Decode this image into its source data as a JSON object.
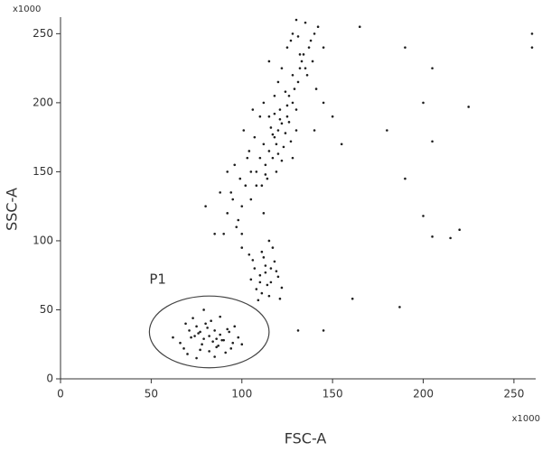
{
  "chart_data": {
    "type": "scatter",
    "x_label": "FSC-A",
    "y_label": "SSC-A",
    "x_unit_label": "x1000",
    "y_unit_label": "x1000",
    "xlim": [
      0,
      262
    ],
    "ylim": [
      0,
      262
    ],
    "xticks": [
      0,
      50,
      100,
      150,
      200,
      250
    ],
    "yticks": [
      0,
      50,
      100,
      150,
      200,
      250
    ],
    "color": "#1e1e1e",
    "gate": {
      "label": "P1",
      "center": [
        82,
        34
      ],
      "radius": [
        33,
        26
      ]
    },
    "x": [
      72,
      78,
      85,
      90,
      68,
      75,
      82,
      88,
      95,
      80,
      70,
      76,
      84,
      92,
      98,
      73,
      79,
      86,
      91,
      66,
      74,
      81,
      87,
      93,
      77,
      83,
      89,
      71,
      96,
      85,
      62,
      100,
      79,
      88,
      75,
      69,
      94,
      82,
      86,
      77,
      110,
      113,
      116,
      108,
      119,
      112,
      105,
      115,
      118,
      111,
      114,
      107,
      120,
      109,
      117,
      122,
      113,
      106,
      111,
      116,
      104,
      121,
      110,
      115,
      100,
      120,
      118,
      125,
      115,
      122,
      128,
      112,
      130,
      117,
      124,
      119,
      126,
      113,
      121,
      127,
      116,
      123,
      110,
      131,
      118,
      125,
      114,
      129,
      120,
      108,
      135,
      122,
      117,
      126,
      111,
      133,
      119,
      105,
      128,
      124,
      115,
      137,
      121,
      113,
      130,
      100,
      95,
      102,
      98,
      92,
      105,
      88,
      97,
      103,
      90,
      140,
      138,
      142,
      134,
      136,
      132,
      145,
      139,
      131,
      141,
      107,
      110,
      104,
      112,
      99,
      96,
      108,
      101,
      94,
      106,
      125,
      130,
      120,
      128,
      135,
      115,
      122,
      118,
      127,
      132,
      85,
      145,
      150,
      112,
      140,
      80,
      155,
      100,
      92,
      128,
      190,
      205,
      200,
      225,
      180,
      205,
      190,
      200,
      205,
      215,
      220,
      187,
      161,
      260,
      260,
      165,
      145,
      131
    ],
    "y": [
      30,
      25,
      35,
      28,
      22,
      38,
      20,
      32,
      26,
      40,
      18,
      33,
      27,
      36,
      30,
      44,
      29,
      23,
      19,
      26,
      31,
      37,
      24,
      34,
      21,
      42,
      28,
      35,
      38,
      16,
      30,
      25,
      50,
      45,
      15,
      40,
      22,
      31,
      29,
      34,
      75,
      82,
      70,
      65,
      78,
      88,
      72,
      60,
      85,
      92,
      68,
      80,
      74,
      57,
      95,
      66,
      77,
      86,
      62,
      80,
      90,
      58,
      70,
      100,
      105,
      180,
      175,
      190,
      165,
      185,
      200,
      170,
      195,
      160,
      178,
      150,
      205,
      155,
      188,
      172,
      182,
      168,
      160,
      215,
      192,
      198,
      145,
      210,
      163,
      150,
      225,
      158,
      177,
      186,
      140,
      230,
      170,
      130,
      220,
      208,
      190,
      240,
      195,
      148,
      180,
      125,
      130,
      140,
      115,
      120,
      150,
      135,
      110,
      160,
      105,
      250,
      245,
      255,
      235,
      220,
      225,
      240,
      230,
      248,
      210,
      175,
      190,
      165,
      200,
      145,
      155,
      140,
      180,
      135,
      195,
      240,
      260,
      215,
      250,
      258,
      230,
      225,
      205,
      245,
      235,
      105,
      200,
      190,
      120,
      180,
      125,
      170,
      95,
      150,
      160,
      240,
      225,
      200,
      197,
      180,
      172,
      145,
      118,
      103,
      102,
      108,
      52,
      58,
      250,
      240,
      255,
      35,
      35
    ]
  }
}
